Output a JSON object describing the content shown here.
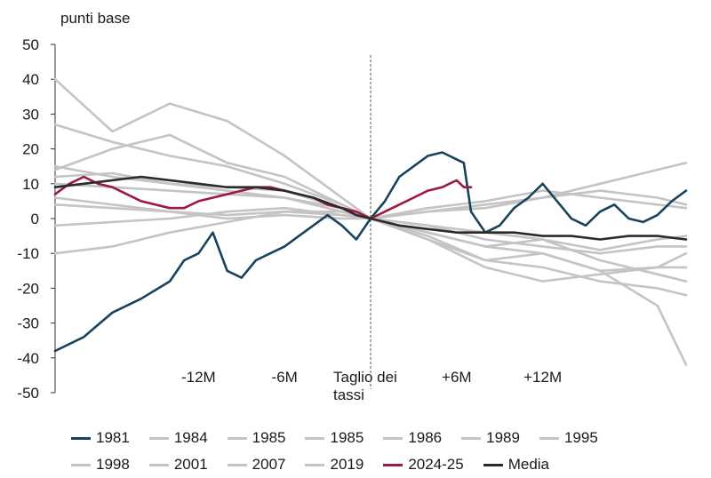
{
  "chart_data": {
    "type": "line",
    "ylabel": "punti base",
    "ylim": [
      -50,
      50
    ],
    "yticks": [
      50,
      40,
      30,
      20,
      10,
      0,
      -10,
      -20,
      -30,
      -40,
      -50
    ],
    "xlim": [
      -22,
      22
    ],
    "xticks": [
      {
        "x": -12,
        "label": "-12M"
      },
      {
        "x": -6,
        "label": "-6M"
      },
      {
        "x": 0,
        "label": "Taglio dei\ntassi"
      },
      {
        "x": 6,
        "label": "+6M"
      },
      {
        "x": 12,
        "label": "+12M"
      }
    ],
    "event_line_x": 0,
    "grid": false,
    "legend_position": "bottom",
    "colors": {
      "highlight_1981": "#17435c",
      "highlight_2024": "#9b1b40",
      "average": "#2b2b2b",
      "other": "#c4c4c4"
    },
    "series": [
      {
        "name": "1981",
        "color": "#17435c",
        "x": [
          -22,
          -20,
          -18,
          -16,
          -14,
          -13,
          -12,
          -11,
          -10,
          -9,
          -8,
          -7,
          -6,
          -5,
          -4,
          -3,
          -2,
          -1,
          0,
          1,
          2,
          3,
          4,
          5,
          6,
          6.5,
          7,
          8,
          9,
          10,
          11,
          12,
          13,
          14,
          15,
          16,
          17,
          18,
          19,
          20,
          21,
          22
        ],
        "values": [
          -38,
          -34,
          -27,
          -23,
          -18,
          -12,
          -10,
          -4,
          -15,
          -17,
          -12,
          -10,
          -8,
          -5,
          -2,
          1,
          -2,
          -6,
          0,
          5,
          12,
          15,
          18,
          19,
          17,
          16,
          2,
          -4,
          -2,
          3,
          6,
          10,
          5,
          0,
          -2,
          2,
          4,
          0,
          -1,
          1,
          5,
          8
        ]
      },
      {
        "name": "1984",
        "color": "#c4c4c4",
        "x": [
          -22,
          -18,
          -14,
          -10,
          -6,
          -2,
          0,
          4,
          8,
          12,
          16,
          20,
          22
        ],
        "values": [
          40,
          25,
          33,
          28,
          18,
          6,
          0,
          -4,
          -8,
          -10,
          -15,
          -25,
          -42
        ]
      },
      {
        "name": "1985",
        "color": "#c4c4c4",
        "x": [
          -22,
          -18,
          -14,
          -10,
          -6,
          -2,
          0,
          4,
          8,
          12,
          16,
          20,
          22
        ],
        "values": [
          27,
          22,
          18,
          15,
          10,
          4,
          0,
          -6,
          -12,
          -14,
          -18,
          -20,
          -22
        ]
      },
      {
        "name": "1985",
        "color": "#c4c4c4",
        "x": [
          -22,
          -18,
          -14,
          -10,
          -6,
          -2,
          0,
          4,
          8,
          12,
          16,
          20,
          22
        ],
        "values": [
          15,
          12,
          10,
          8,
          6,
          3,
          0,
          2,
          4,
          6,
          10,
          14,
          16
        ]
      },
      {
        "name": "1986",
        "color": "#c4c4c4",
        "x": [
          -22,
          -18,
          -14,
          -10,
          -6,
          -2,
          0,
          4,
          8,
          12,
          16,
          20,
          22
        ],
        "values": [
          12,
          13,
          10,
          9,
          8,
          3,
          0,
          -5,
          -12,
          -10,
          -15,
          -14,
          -14
        ]
      },
      {
        "name": "1989",
        "color": "#c4c4c4",
        "x": [
          -22,
          -18,
          -14,
          -10,
          -6,
          -2,
          0,
          4,
          8,
          12,
          16,
          20,
          22
        ],
        "values": [
          10,
          9,
          8,
          7,
          6,
          2,
          0,
          3,
          5,
          8,
          6,
          4,
          3
        ]
      },
      {
        "name": "1995",
        "color": "#c4c4c4",
        "x": [
          -22,
          -18,
          -14,
          -10,
          -6,
          -2,
          0,
          4,
          8,
          12,
          16,
          20,
          22
        ],
        "values": [
          4,
          3,
          2,
          1,
          2,
          1,
          0,
          -4,
          -8,
          -6,
          -9,
          -6,
          -5
        ]
      },
      {
        "name": "1998",
        "color": "#c4c4c4",
        "x": [
          -22,
          -18,
          -14,
          -10,
          -6,
          -2,
          0,
          4,
          8,
          12,
          16,
          20,
          22
        ],
        "values": [
          -10,
          -8,
          -4,
          -1,
          2,
          2,
          0,
          -2,
          -6,
          -8,
          -10,
          -8,
          -8
        ]
      },
      {
        "name": "2001",
        "color": "#c4c4c4",
        "x": [
          -22,
          -18,
          -14,
          -10,
          -6,
          -2,
          0,
          4,
          8,
          12,
          16,
          20,
          22
        ],
        "values": [
          14,
          20,
          24,
          16,
          12,
          4,
          0,
          -2,
          -4,
          -6,
          -12,
          -16,
          -18
        ]
      },
      {
        "name": "2007",
        "color": "#c4c4c4",
        "x": [
          -22,
          -18,
          -14,
          -10,
          -6,
          -2,
          0,
          4,
          8,
          12,
          16,
          20,
          22
        ],
        "values": [
          -2,
          -1,
          0,
          2,
          3,
          1,
          0,
          -6,
          -14,
          -18,
          -16,
          -14,
          -10
        ]
      },
      {
        "name": "2019",
        "color": "#c4c4c4",
        "x": [
          -22,
          -18,
          -14,
          -10,
          -6,
          -2,
          0,
          4,
          8,
          12,
          16,
          20,
          22
        ],
        "values": [
          6,
          4,
          2,
          0,
          1,
          0,
          0,
          2,
          3,
          6,
          8,
          6,
          4
        ]
      },
      {
        "name": "2024-25",
        "color": "#9b1b40",
        "x": [
          -22,
          -21,
          -20,
          -19,
          -18,
          -17,
          -16,
          -15,
          -14,
          -13,
          -12,
          -11,
          -10,
          -9,
          -8,
          -7,
          -6,
          -5,
          -4,
          -3,
          -2,
          -1,
          0,
          1,
          2,
          3,
          4,
          5,
          6,
          6.5,
          7
        ],
        "values": [
          7,
          10,
          12,
          10,
          9,
          7,
          5,
          4,
          3,
          3,
          5,
          6,
          7,
          8,
          9,
          9,
          8,
          7,
          6,
          4,
          3,
          2,
          0,
          2,
          4,
          6,
          8,
          9,
          11,
          9,
          9
        ]
      },
      {
        "name": "Media",
        "color": "#2b2b2b",
        "x": [
          -22,
          -20,
          -18,
          -16,
          -14,
          -12,
          -10,
          -8,
          -6,
          -4,
          -2,
          -1,
          0,
          2,
          4,
          6,
          8,
          10,
          12,
          14,
          16,
          18,
          20,
          22
        ],
        "values": [
          9,
          10,
          11,
          12,
          11,
          10,
          9,
          9,
          8,
          6,
          3,
          1,
          0,
          -2,
          -3,
          -4,
          -4,
          -4,
          -5,
          -5,
          -6,
          -5,
          -5,
          -6
        ]
      }
    ]
  }
}
